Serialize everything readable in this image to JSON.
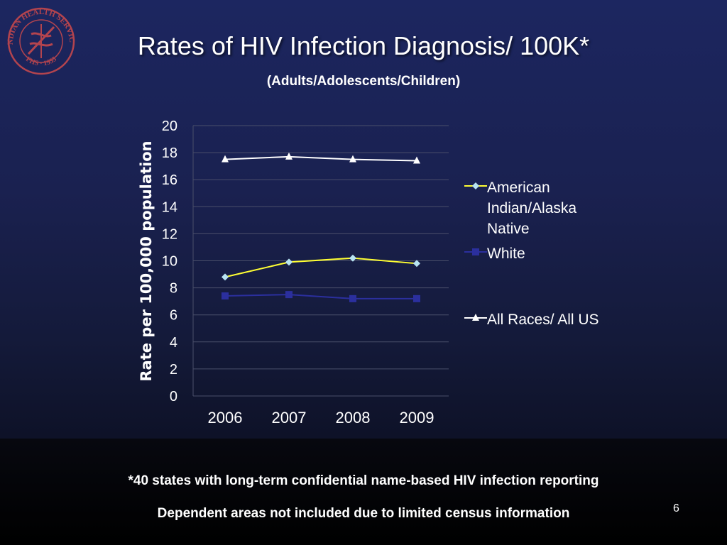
{
  "slide": {
    "title": "Rates of HIV Infection Diagnosis/ 100K*",
    "subtitle": "(Adults/Adolescents/Children)",
    "footnotes": [
      "*40 states with long-term confidential name-based HIV infection reporting",
      "Dependent areas not included due to limited census information"
    ],
    "page_number": "6",
    "logo": {
      "icon": "indian-health-service-seal",
      "text_top": "INDIAN HEALTH SERVICE",
      "text_bottom": "PHS · 1955"
    }
  },
  "colors": {
    "american_indian": "#ffff33",
    "american_indian_marker": "#b8e4f2",
    "white": "#2b2f9e",
    "all_races": "#ffffff",
    "gridline": "#4a4f6a",
    "axis_text": "#ffffff",
    "logo": "#b3444e"
  },
  "chart_data": {
    "type": "line",
    "x": [
      "2006",
      "2007",
      "2008",
      "2009"
    ],
    "ylabel": "Rate per 100,000 population",
    "ylim": [
      0,
      20
    ],
    "yticks": [
      0,
      2,
      4,
      6,
      8,
      10,
      12,
      14,
      16,
      18,
      20
    ],
    "grid": true,
    "legend_position": "right",
    "series": [
      {
        "name": "American Indian/Alaska Native",
        "values": [
          8.8,
          9.9,
          10.2,
          9.8
        ],
        "marker": "diamond"
      },
      {
        "name": "White",
        "values": [
          7.4,
          7.5,
          7.2,
          7.2
        ],
        "marker": "square"
      },
      {
        "name": "All Races/ All US",
        "values": [
          17.5,
          17.7,
          17.5,
          17.4
        ],
        "marker": "triangle"
      }
    ]
  }
}
